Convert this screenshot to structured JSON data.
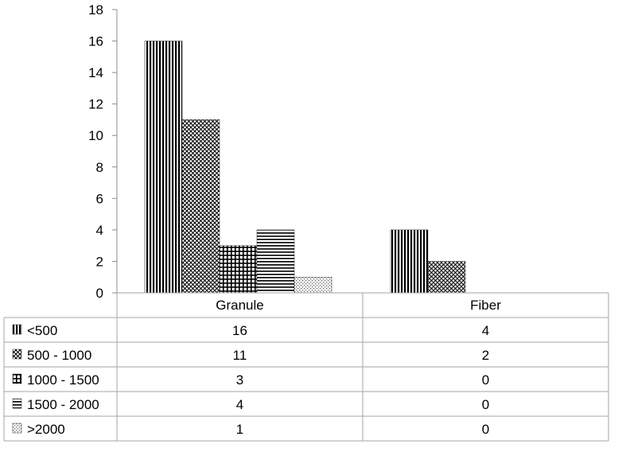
{
  "chart_data": {
    "type": "bar",
    "categories": [
      "Granule",
      "Fiber"
    ],
    "series": [
      {
        "name": "<500",
        "values": [
          16,
          4
        ],
        "pattern": "vertical-stripes"
      },
      {
        "name": "500 - 1000",
        "values": [
          11,
          2
        ],
        "pattern": "diagonal-crosshatch"
      },
      {
        "name": "1000 - 1500",
        "values": [
          3,
          0
        ],
        "pattern": "grid"
      },
      {
        "name": "1500 - 2000",
        "values": [
          4,
          0
        ],
        "pattern": "horizontal-stripes"
      },
      {
        "name": ">2000",
        "values": [
          1,
          0
        ],
        "pattern": "dots"
      }
    ],
    "ylim": [
      0,
      18
    ],
    "yticks": [
      0,
      2,
      4,
      6,
      8,
      10,
      12,
      14,
      16,
      18
    ],
    "title": "",
    "xlabel": "",
    "ylabel": "",
    "grid": false,
    "legend": "data-table",
    "data_table": true
  },
  "colors": {
    "ink": "#000000",
    "axis": "#8c8c8c",
    "table_border": "#a6a6a6"
  }
}
